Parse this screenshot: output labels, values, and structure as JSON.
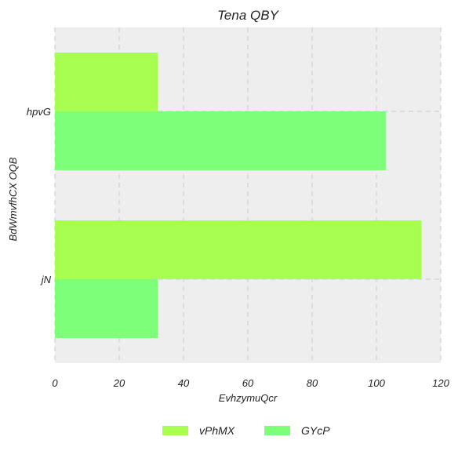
{
  "chart_data": {
    "type": "bar",
    "orientation": "horizontal",
    "title": "Tena  QBY",
    "xlabel": "EvhzymuQcr",
    "ylabel": "BdWmvfhCX OQB",
    "categories": [
      "hpvG",
      "jN"
    ],
    "series": [
      {
        "name": "vPhMX",
        "values": [
          32,
          114
        ],
        "color": "#a8ff4f"
      },
      {
        "name": "GYcP",
        "values": [
          103,
          32
        ],
        "color": "#7dff7a"
      }
    ],
    "xlim": [
      0,
      120
    ],
    "xticks": [
      "0",
      "20",
      "40",
      "60",
      "80",
      "100",
      "120"
    ],
    "grid": true,
    "legend_position": "bottom-center",
    "background_color": "#eeeeee"
  }
}
